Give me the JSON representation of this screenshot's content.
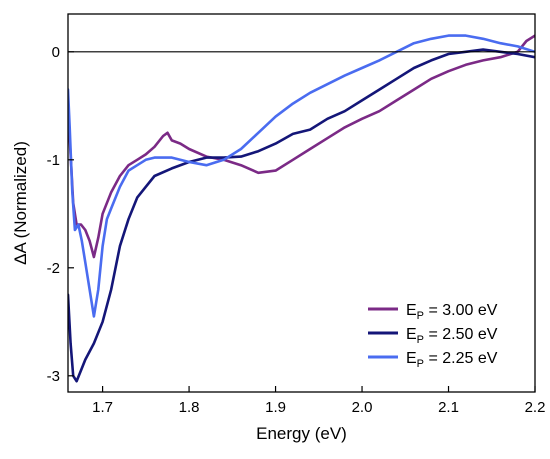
{
  "chart_data": {
    "type": "line",
    "title": "",
    "xlabel": "Energy (eV)",
    "ylabel": "ΔA (Normalized)",
    "xlim": [
      1.66,
      2.2
    ],
    "ylim": [
      -3.15,
      0.35
    ],
    "xticks": [
      1.7,
      1.8,
      1.9,
      2.0,
      2.1,
      2.2
    ],
    "xtick_labels": [
      "1.7",
      "1.8",
      "1.9",
      "2.0",
      "2.1",
      "2.2"
    ],
    "yticks": [
      -3,
      -2,
      -1,
      0
    ],
    "ytick_labels": [
      "-3",
      "-2",
      "-1",
      "0"
    ],
    "zero_line": 0,
    "grid": false,
    "legend_position": "bottom-right",
    "series": [
      {
        "name_main": "E",
        "name_sub": "P",
        "name_rest": " = 3.00 eV",
        "color": "#7b2a86",
        "x": [
          1.66,
          1.663,
          1.666,
          1.67,
          1.675,
          1.68,
          1.685,
          1.69,
          1.695,
          1.7,
          1.71,
          1.72,
          1.73,
          1.74,
          1.75,
          1.76,
          1.77,
          1.775,
          1.78,
          1.79,
          1.8,
          1.82,
          1.84,
          1.86,
          1.88,
          1.9,
          1.92,
          1.94,
          1.96,
          1.98,
          2.0,
          2.02,
          2.04,
          2.06,
          2.08,
          2.1,
          2.12,
          2.14,
          2.16,
          2.18,
          2.19,
          2.2
        ],
        "y": [
          -0.55,
          -0.95,
          -1.4,
          -1.6,
          -1.6,
          -1.65,
          -1.75,
          -1.9,
          -1.72,
          -1.5,
          -1.3,
          -1.15,
          -1.05,
          -1.0,
          -0.95,
          -0.88,
          -0.78,
          -0.75,
          -0.82,
          -0.85,
          -0.9,
          -0.97,
          -1.0,
          -1.05,
          -1.12,
          -1.1,
          -1.0,
          -0.9,
          -0.8,
          -0.7,
          -0.62,
          -0.55,
          -0.45,
          -0.35,
          -0.25,
          -0.18,
          -0.12,
          -0.08,
          -0.05,
          0.0,
          0.1,
          0.15
        ]
      },
      {
        "name_main": "E",
        "name_sub": "P",
        "name_rest": " = 2.50 eV",
        "color": "#141678",
        "x": [
          1.66,
          1.663,
          1.666,
          1.67,
          1.675,
          1.68,
          1.69,
          1.7,
          1.71,
          1.72,
          1.73,
          1.74,
          1.75,
          1.76,
          1.78,
          1.8,
          1.82,
          1.84,
          1.86,
          1.88,
          1.9,
          1.92,
          1.94,
          1.96,
          1.98,
          2.0,
          2.02,
          2.04,
          2.06,
          2.08,
          2.1,
          2.12,
          2.14,
          2.16,
          2.18,
          2.2
        ],
        "y": [
          -2.25,
          -2.7,
          -3.0,
          -3.05,
          -2.95,
          -2.85,
          -2.7,
          -2.5,
          -2.2,
          -1.8,
          -1.55,
          -1.35,
          -1.25,
          -1.15,
          -1.08,
          -1.02,
          -0.98,
          -0.98,
          -0.97,
          -0.92,
          -0.85,
          -0.76,
          -0.72,
          -0.62,
          -0.55,
          -0.45,
          -0.35,
          -0.25,
          -0.15,
          -0.08,
          -0.02,
          0.0,
          0.02,
          0.0,
          -0.02,
          -0.05
        ]
      },
      {
        "name_main": "E",
        "name_sub": "P",
        "name_rest": " = 2.25 eV",
        "color": "#4a6cf0",
        "x": [
          1.66,
          1.662,
          1.665,
          1.668,
          1.672,
          1.676,
          1.68,
          1.685,
          1.69,
          1.695,
          1.7,
          1.705,
          1.71,
          1.72,
          1.73,
          1.74,
          1.75,
          1.76,
          1.78,
          1.8,
          1.82,
          1.84,
          1.86,
          1.88,
          1.9,
          1.92,
          1.94,
          1.96,
          1.98,
          2.0,
          2.02,
          2.04,
          2.06,
          2.08,
          2.1,
          2.12,
          2.14,
          2.16,
          2.18,
          2.2
        ],
        "y": [
          -0.35,
          -0.7,
          -1.3,
          -1.65,
          -1.6,
          -1.75,
          -1.95,
          -2.2,
          -2.45,
          -2.2,
          -1.8,
          -1.55,
          -1.45,
          -1.25,
          -1.1,
          -1.05,
          -1.0,
          -0.98,
          -0.98,
          -1.02,
          -1.05,
          -1.0,
          -0.9,
          -0.75,
          -0.6,
          -0.48,
          -0.38,
          -0.3,
          -0.22,
          -0.15,
          -0.08,
          0.0,
          0.08,
          0.12,
          0.15,
          0.15,
          0.12,
          0.08,
          0.05,
          0.0
        ]
      }
    ]
  }
}
